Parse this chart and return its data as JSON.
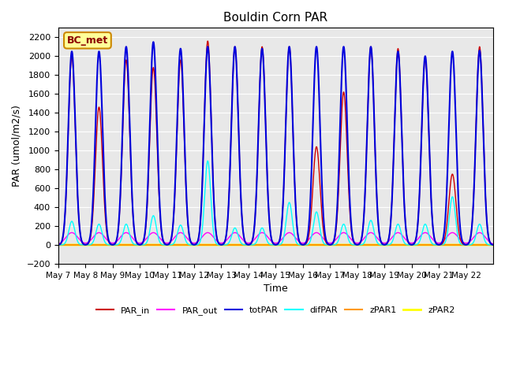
{
  "title": "Bouldin Corn PAR",
  "ylabel": "PAR (umol/m2/s)",
  "xlabel": "Time",
  "ylim": [
    -200,
    2300
  ],
  "num_days": 16,
  "tick_labels": [
    "May 7",
    "May 8",
    "May 9",
    "May 10",
    "May 11",
    "May 12",
    "May 13",
    "May 14",
    "May 15",
    "May 16",
    "May 17",
    "May 18",
    "May 19",
    "May 20",
    "May 21",
    "May 22"
  ],
  "plot_bg_color": "#e8e8e8",
  "legend_label": "BC_met",
  "legend_bg": "#ffff99",
  "legend_border": "#cc8800",
  "series": {
    "totPAR": {
      "color": "#0000dd",
      "lw": 1.5
    },
    "PAR_in": {
      "color": "#cc0000",
      "lw": 1.0
    },
    "PAR_out": {
      "color": "#ff00ff",
      "lw": 1.0
    },
    "difPAR": {
      "color": "#00ffff",
      "lw": 1.0
    },
    "zPAR1": {
      "color": "#ff9900",
      "lw": 1.5
    },
    "zPAR2": {
      "color": "#ffff00",
      "lw": 2.0
    }
  },
  "peaks": {
    "totPAR": [
      2050,
      2050,
      2100,
      2150,
      2080,
      2100,
      2100,
      2080,
      2100,
      2100,
      2100,
      2100,
      2050,
      2000,
      2050,
      2060
    ],
    "PAR_in": [
      2000,
      1460,
      1960,
      1880,
      1960,
      2160,
      2100,
      2100,
      2100,
      1040,
      1620,
      2100,
      2080,
      1980,
      750,
      2100
    ],
    "PAR_out": [
      130,
      130,
      130,
      130,
      130,
      130,
      130,
      130,
      130,
      130,
      130,
      130,
      130,
      130,
      130,
      130
    ],
    "difPAR": [
      250,
      220,
      220,
      310,
      210,
      890,
      180,
      180,
      450,
      350,
      220,
      260,
      220,
      220,
      510,
      220
    ]
  },
  "yticks": [
    -200,
    0,
    200,
    400,
    600,
    800,
    1000,
    1200,
    1400,
    1600,
    1800,
    2000,
    2200
  ]
}
